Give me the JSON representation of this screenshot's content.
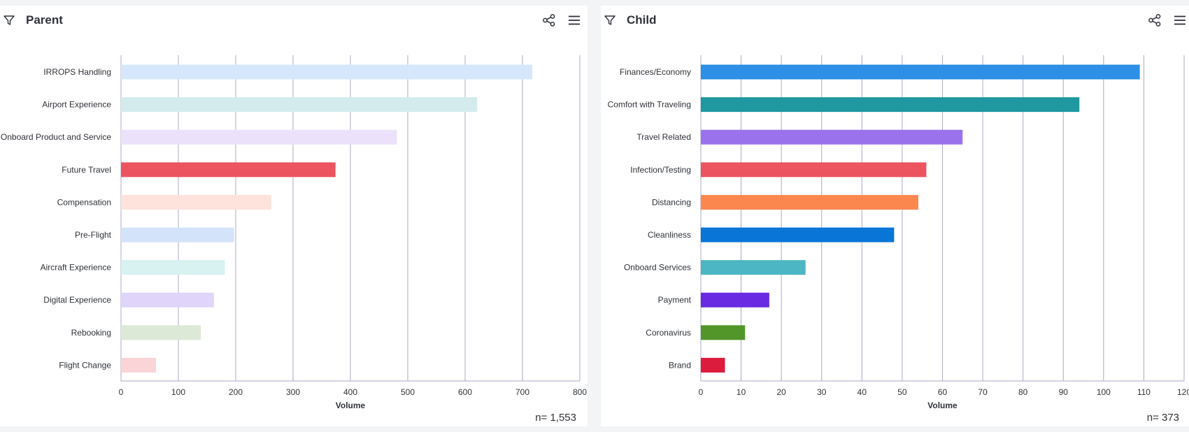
{
  "panels": [
    {
      "title": "Parent",
      "n_label": "n= 1,553",
      "icons": [
        "filter-icon",
        "share-icon",
        "menu-icon"
      ]
    },
    {
      "title": "Child",
      "n_label": "n= 373",
      "icons": [
        "filter-icon",
        "share-icon",
        "menu-icon"
      ]
    }
  ],
  "chart_data": [
    {
      "type": "bar",
      "orientation": "horizontal",
      "title": "Parent",
      "xlabel": "Volume",
      "ylabel": "",
      "xlim": [
        0,
        800
      ],
      "ticks": [
        0,
        100,
        200,
        300,
        400,
        500,
        600,
        700,
        800
      ],
      "grid": true,
      "categories": [
        "IRROPS Handling",
        "Airport Experience",
        "Onboard Product and Service",
        "Future Travel",
        "Compensation",
        "Pre-Flight",
        "Aircraft Experience",
        "Digital Experience",
        "Rebooking",
        "Flight Change"
      ],
      "values": [
        717,
        621,
        481,
        374,
        262,
        197,
        181,
        162,
        139,
        61
      ],
      "colors": [
        "#d6e6fb",
        "#d3ebec",
        "#ebe1fb",
        "#ec5460",
        "#fde3dc",
        "#d3e3f9",
        "#d8f1f1",
        "#e0d4fa",
        "#dce9d6",
        "#fbd4d8"
      ]
    },
    {
      "type": "bar",
      "orientation": "horizontal",
      "title": "Child",
      "xlabel": "Volume",
      "ylabel": "",
      "xlim": [
        0,
        120
      ],
      "ticks": [
        0,
        10,
        20,
        30,
        40,
        50,
        60,
        70,
        80,
        90,
        100,
        110,
        120
      ],
      "grid": true,
      "categories": [
        "Finances/Economy",
        "Comfort with Traveling",
        "Travel Related",
        "Infection/Testing",
        "Distancing",
        "Cleanliness",
        "Onboard Services",
        "Payment",
        "Coronavirus",
        "Brand"
      ],
      "values": [
        109,
        94,
        65,
        56,
        54,
        48,
        26,
        17,
        11,
        6
      ],
      "colors": [
        "#2d8fe6",
        "#1f98a0",
        "#9a72eb",
        "#ec5460",
        "#fb874e",
        "#0875d7",
        "#4cb6c4",
        "#6a2ae2",
        "#52962a",
        "#dc1c3c"
      ]
    }
  ]
}
